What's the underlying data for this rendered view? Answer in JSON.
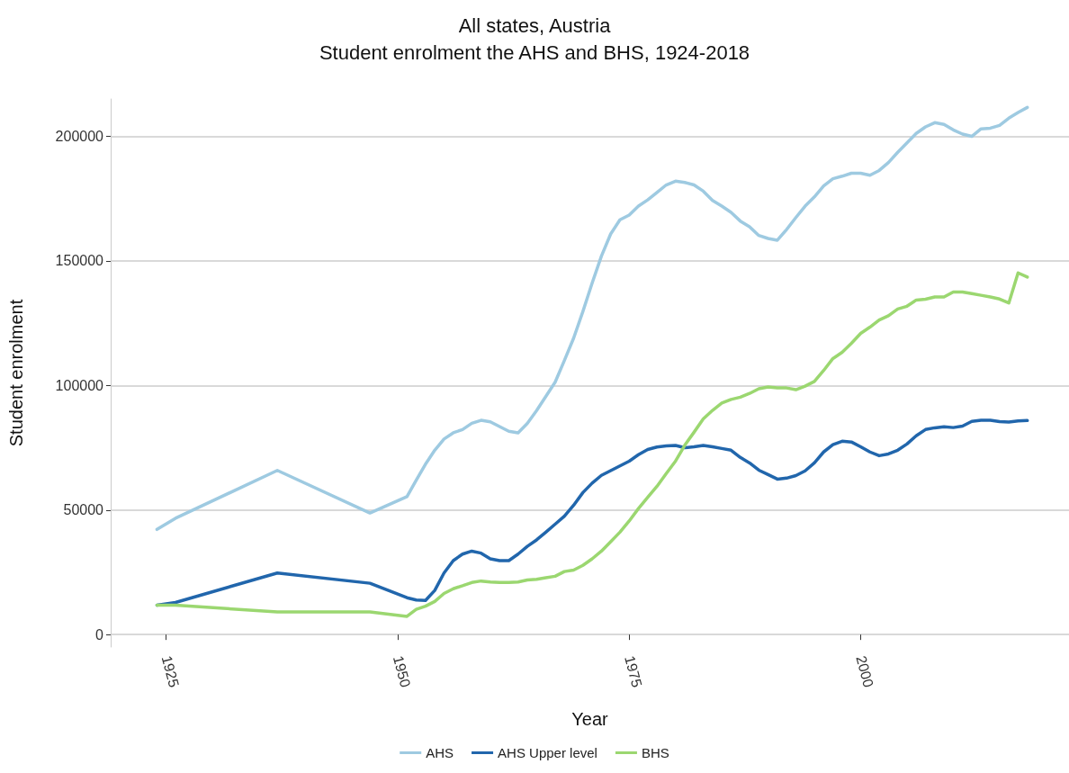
{
  "chart_data": {
    "type": "line",
    "title": "All states, Austria",
    "subtitle": "Student enrolment the AHS and BHS, 1924-2018",
    "xlabel": "Year",
    "ylabel": "Student enrolment",
    "x": [
      1924,
      1926,
      1937,
      1947,
      1951,
      1952,
      1953,
      1954,
      1955,
      1956,
      1957,
      1958,
      1959,
      1960,
      1961,
      1962,
      1963,
      1964,
      1965,
      1966,
      1967,
      1968,
      1969,
      1970,
      1971,
      1972,
      1973,
      1974,
      1975,
      1976,
      1977,
      1978,
      1979,
      1980,
      1981,
      1982,
      1983,
      1984,
      1985,
      1986,
      1987,
      1988,
      1989,
      1990,
      1991,
      1992,
      1993,
      1994,
      1995,
      1996,
      1997,
      1998,
      1999,
      2000,
      2001,
      2002,
      2003,
      2004,
      2005,
      2006,
      2007,
      2008,
      2009,
      2010,
      2011,
      2012,
      2013,
      2014,
      2015,
      2016,
      2017,
      2018
    ],
    "series": [
      {
        "name": "AHS",
        "color": "#9ecae1",
        "values": [
          42200,
          46700,
          65900,
          48800,
          55400,
          62000,
          68400,
          74000,
          78500,
          81000,
          82300,
          84800,
          86000,
          85400,
          83500,
          81600,
          81000,
          84800,
          89900,
          95600,
          101300,
          110000,
          119000,
          129700,
          141100,
          151900,
          160800,
          166500,
          168400,
          172000,
          174500,
          177500,
          180500,
          182000,
          181500,
          180500,
          178000,
          174300,
          172000,
          169500,
          166000,
          163700,
          160200,
          159000,
          158300,
          162600,
          167400,
          172000,
          175700,
          180100,
          183000,
          184000,
          185200,
          185200,
          184400,
          186300,
          189500,
          193600,
          197400,
          201200,
          203800,
          205500,
          204800,
          202600,
          200900,
          200000,
          203000,
          203300,
          204400,
          207300,
          209600,
          211600
        ]
      },
      {
        "name": "AHS Upper level",
        "color": "#2166ac",
        "values": [
          11800,
          12900,
          24700,
          20600,
          14800,
          13900,
          13700,
          17700,
          24700,
          29700,
          32300,
          33500,
          32700,
          30400,
          29700,
          29700,
          32300,
          35400,
          38000,
          41100,
          44300,
          47500,
          51900,
          57000,
          60800,
          63900,
          65800,
          67700,
          69600,
          72200,
          74300,
          75300,
          75700,
          75900,
          75000,
          75400,
          75900,
          75400,
          74700,
          74000,
          71100,
          68900,
          66000,
          64200,
          62400,
          62800,
          63800,
          65700,
          68900,
          73300,
          76200,
          77600,
          77300,
          75400,
          73300,
          71800,
          72500,
          74000,
          76500,
          79800,
          82300,
          83000,
          83400,
          83100,
          83700,
          85600,
          86000,
          86000,
          85500,
          85300,
          85800,
          85900
        ]
      },
      {
        "name": "BHS",
        "color": "#9bd770",
        "values": [
          11800,
          11800,
          9100,
          9100,
          7300,
          10100,
          11400,
          13300,
          16500,
          18400,
          19600,
          20900,
          21500,
          21100,
          20900,
          20900,
          21100,
          21900,
          22200,
          22800,
          23400,
          25300,
          25900,
          27800,
          30400,
          33500,
          37300,
          41100,
          45600,
          50600,
          55100,
          59500,
          64600,
          69600,
          76000,
          81200,
          86600,
          90000,
          92900,
          94400,
          95300,
          96800,
          98700,
          99400,
          99000,
          99000,
          98300,
          99700,
          101600,
          106000,
          110800,
          113300,
          116900,
          120900,
          123400,
          126300,
          128000,
          130700,
          131800,
          134300,
          134600,
          135500,
          135500,
          137500,
          137500,
          136900,
          136200,
          135500,
          134700,
          133100,
          145200,
          143500
        ]
      }
    ],
    "xlim": [
      1919,
      2022.5
    ],
    "xticks": [
      1925,
      1950,
      1975,
      2000
    ],
    "ylim": [
      -5000,
      215000
    ],
    "yticks": [
      0,
      50000,
      100000,
      150000,
      200000
    ],
    "grid": "y",
    "legend": "bottom",
    "marker": "none",
    "line_style": "solid"
  }
}
